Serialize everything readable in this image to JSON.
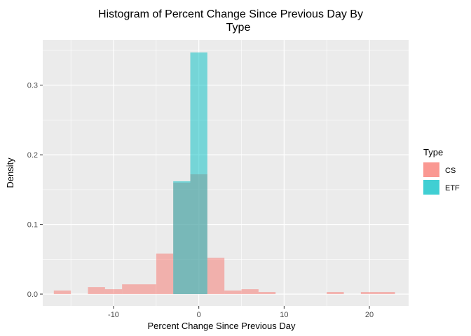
{
  "chart_data": {
    "type": "bar",
    "title_line1": "Histogram of Percent Change Since Previous Day By",
    "title_line2": "Type",
    "xlabel": "Percent Change Since Previous Day",
    "ylabel": "Density",
    "xlim": [
      -18.3,
      24.6
    ],
    "ylim": [
      -0.017,
      0.365
    ],
    "x_ticks": [
      -10,
      0,
      10,
      20
    ],
    "x_tick_labels": [
      "-10",
      "0",
      "10",
      "20"
    ],
    "y_ticks": [
      0.0,
      0.1,
      0.2,
      0.3
    ],
    "y_tick_labels": [
      "0.0",
      "0.1",
      "0.2",
      "0.3"
    ],
    "legend": {
      "title": "Type",
      "position": "right",
      "items": [
        {
          "label": "CS",
          "color": "#F8766D"
        },
        {
          "label": "ETF",
          "color": "#00BFC4"
        }
      ]
    },
    "bin_width": 2,
    "bin_starts": [
      -17,
      -15,
      -13,
      -11,
      -9,
      -7,
      -5,
      -3,
      -1,
      1,
      3,
      5,
      7,
      9,
      11,
      13,
      15,
      17,
      19,
      21
    ],
    "series": [
      {
        "name": "CS",
        "color": "#F8766D",
        "values": [
          0.005,
          0,
          0.01,
          0.007,
          0.014,
          0.014,
          0.058,
          0.16,
          0.172,
          0.052,
          0.005,
          0.007,
          0.003,
          0,
          0,
          0,
          0.003,
          0,
          0.003,
          0.003
        ]
      },
      {
        "name": "ETF",
        "color": "#00BFC4",
        "values": [
          0,
          0,
          0,
          0,
          0,
          0,
          0,
          0.162,
          0.347,
          0,
          0,
          0,
          0,
          0,
          0,
          0,
          0,
          0,
          0,
          0
        ]
      }
    ]
  }
}
